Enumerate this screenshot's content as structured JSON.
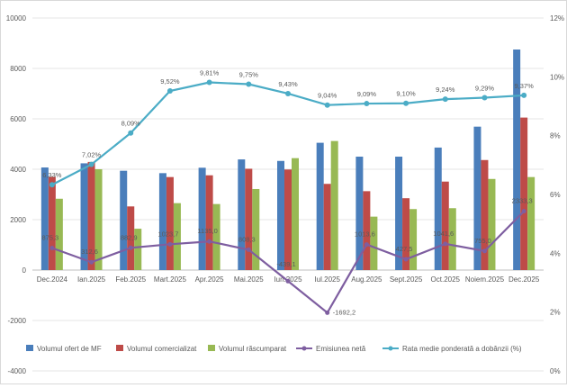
{
  "chart_data": {
    "type": "bar",
    "title": "",
    "categories": [
      "Dec.2024",
      "Ian.2025",
      "Feb.2025",
      "Mart.2025",
      "Apr.2025",
      "Mai.2025",
      "Iun.2025",
      "Iul.2025",
      "Aug.2025",
      "Sept.2025",
      "Oct.2025",
      "Noiem.2025",
      "Dec.2025"
    ],
    "ylim": [
      -4000,
      10000
    ],
    "yticks": [
      "-4000",
      "-2000",
      "0",
      "2000",
      "4000",
      "6000",
      "8000",
      "10000"
    ],
    "y2lim": [
      0,
      12
    ],
    "y2ticks": [
      "0%",
      "2%",
      "4%",
      "6%",
      "8%",
      "10%",
      "12%"
    ],
    "grid": true,
    "legend_position": "bottom",
    "series": [
      {
        "name": "Volumul ofert de MF",
        "type": "bar",
        "axis": "left",
        "color": "#4a7ebb",
        "values": [
          4070,
          4235,
          3940,
          3845,
          4060,
          4390,
          4330,
          5050,
          4500,
          4500,
          4860,
          5690,
          8750
        ]
      },
      {
        "name": "Volumul comercializat",
        "type": "bar",
        "axis": "left",
        "color": "#be4b48",
        "values": [
          3700,
          4290,
          2525,
          3690,
          3760,
          4020,
          3990,
          3420,
          3130,
          2850,
          3510,
          4365,
          6050
        ]
      },
      {
        "name": "Volumul răscumparat",
        "type": "bar",
        "axis": "left",
        "color": "#98b954",
        "values": [
          2830,
          4000,
          1640,
          2655,
          2620,
          3215,
          4440,
          5120,
          2120,
          2420,
          2455,
          3615,
          3690
        ]
      },
      {
        "name": "Emisiunea netă",
        "type": "line",
        "axis": "left",
        "color": "#7e5ea0",
        "values": [
          875.3,
          312.6,
          882.9,
          1023.7,
          1135.0,
          808.3,
          -439.1,
          -1692.2,
          1013.6,
          427.5,
          1041.6,
          755.0,
          2333.3
        ],
        "labels": [
          "875,3",
          "312,6",
          "882,9",
          "1023,7",
          "1135,0",
          "808,3",
          "-439,1",
          "-1692,2",
          "1013,6",
          "427,5",
          "1041,6",
          "755,0",
          "2333,3"
        ]
      },
      {
        "name": "Rata medie ponderată a dobânzii (%)",
        "type": "line",
        "axis": "right",
        "color": "#4bacc6",
        "values": [
          6.33,
          7.02,
          8.09,
          9.52,
          9.81,
          9.75,
          9.43,
          9.04,
          9.09,
          9.1,
          9.24,
          9.29,
          9.37
        ],
        "labels": [
          "6,33%",
          "7,02%",
          "8,09%",
          "9,52%",
          "9,81%",
          "9,75%",
          "9,43%",
          "9,04%",
          "9,09%",
          "9,10%",
          "9,24%",
          "9,29%",
          "9,37%"
        ]
      }
    ]
  }
}
